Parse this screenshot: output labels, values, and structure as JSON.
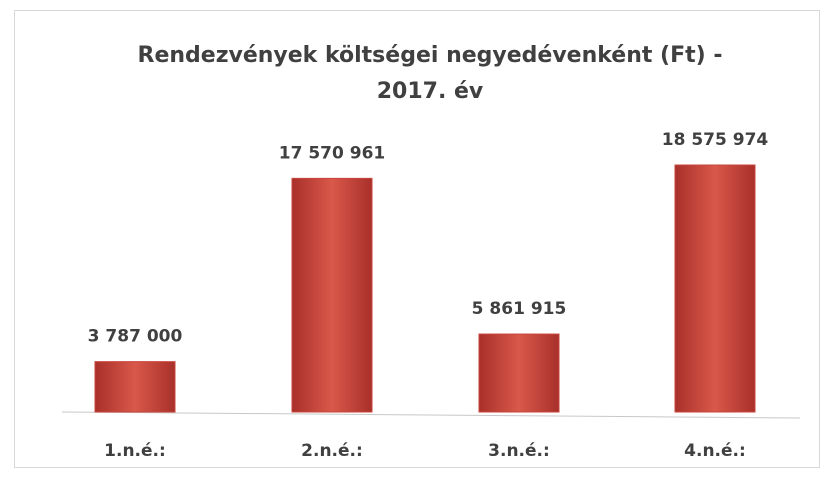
{
  "chart_data": {
    "type": "bar",
    "title": "Rendezvények költségei negyedévenként (Ft) - 2017. év",
    "categories": [
      "1.n.é.:",
      "2.n.é.:",
      "3.n.é.:",
      "4.n.é.:"
    ],
    "values": [
      3787000,
      17570961,
      5861915,
      18575974
    ],
    "value_labels": [
      "3 787 000",
      "17 570 961",
      "5 861 915",
      "18 575 974"
    ],
    "color": "#c8443a"
  }
}
